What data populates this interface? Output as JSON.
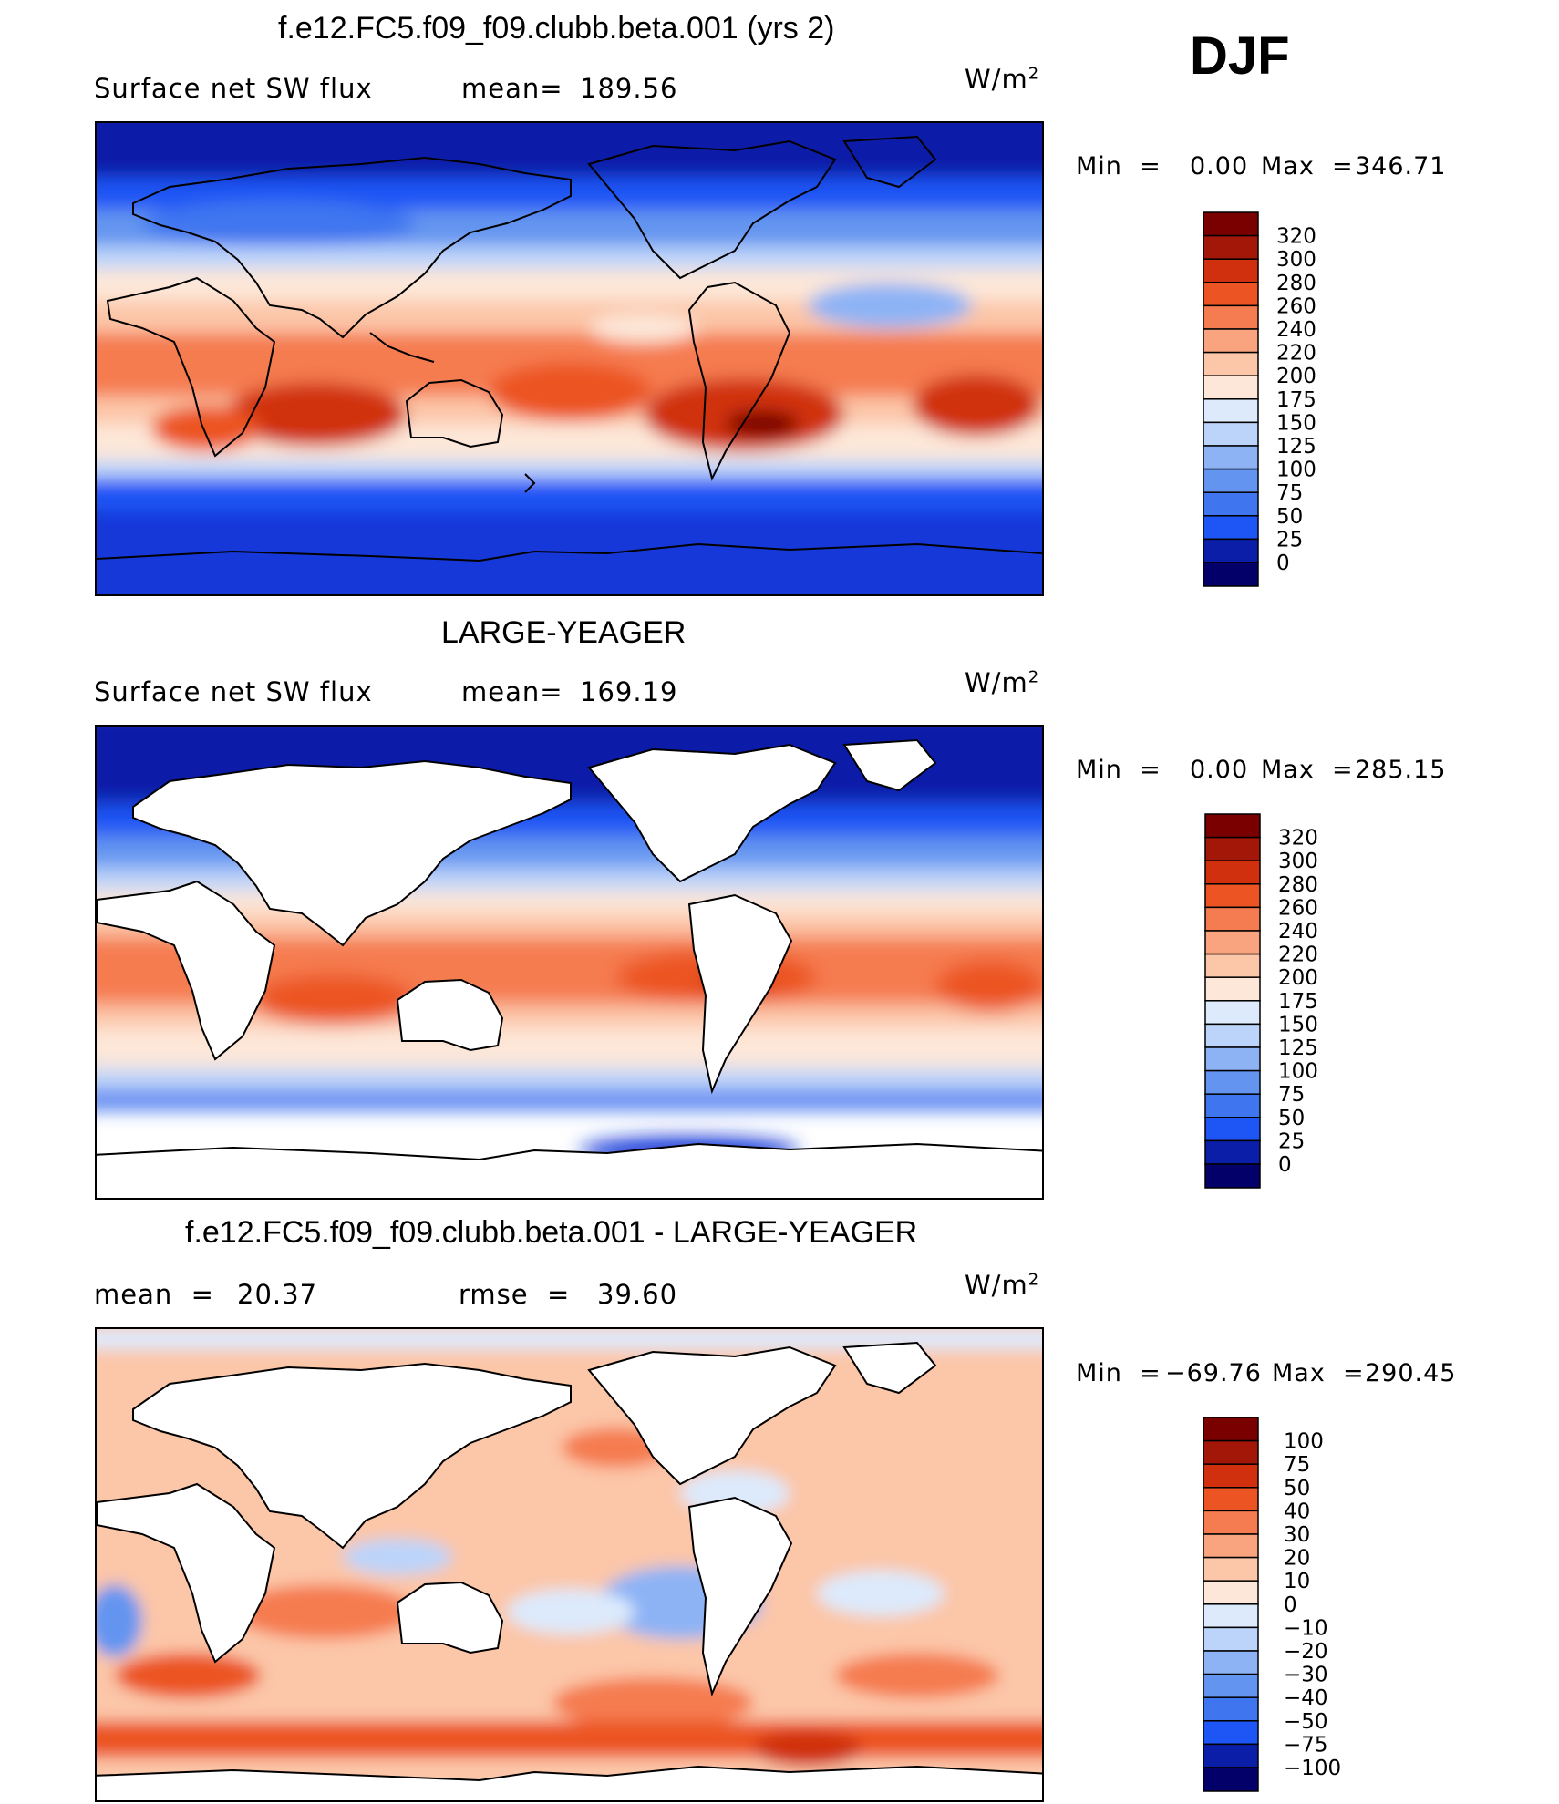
{
  "season": "DJF",
  "units": {
    "base": "W/m",
    "exp": "2"
  },
  "panels": [
    {
      "title": "f.e12.FC5.f09_f09.clubb.beta.001 (yrs 2)",
      "variable": "Surface net SW flux",
      "stat1_label": "mean=",
      "stat1_value": "189.56",
      "min_label": "Min  =",
      "min_value": "0.00",
      "max_label": "Max  =",
      "max_value": "346.71",
      "colorbar_labels": [
        "320",
        "300",
        "280",
        "260",
        "240",
        "220",
        "200",
        "175",
        "150",
        "125",
        "100",
        "75",
        "50",
        "25",
        "0"
      ],
      "map_kind": "model"
    },
    {
      "title": "LARGE-YEAGER",
      "variable": "Surface net SW flux",
      "stat1_label": "mean=",
      "stat1_value": "169.19",
      "min_label": "Min  =",
      "min_value": "0.00",
      "max_label": "Max  =",
      "max_value": "285.15",
      "colorbar_labels": [
        "320",
        "300",
        "280",
        "260",
        "240",
        "220",
        "200",
        "175",
        "150",
        "125",
        "100",
        "75",
        "50",
        "25",
        "0"
      ],
      "map_kind": "obs"
    },
    {
      "title": "f.e12.FC5.f09_f09.clubb.beta.001 - LARGE-YEAGER",
      "stat1_label": "mean  =",
      "stat1_value": "20.37",
      "stat2_label": "rmse  =",
      "stat2_value": "39.60",
      "min_label": "Min  =",
      "min_value": "−69.76",
      "max_label": "Max  =",
      "max_value": "290.45",
      "colorbar_labels": [
        "100",
        "75",
        "50",
        "40",
        "30",
        "20",
        "10",
        "0",
        "−10",
        "−20",
        "−30",
        "−40",
        "−50",
        "−75",
        "−100"
      ],
      "map_kind": "diff"
    }
  ],
  "chart_data": [
    {
      "type": "heatmap",
      "title": "f.e12.FC5.f09_f09.clubb.beta.001 (yrs 2)",
      "subtitle": "Surface net SW flux",
      "units": "W/m2",
      "season": "DJF",
      "mean": 189.56,
      "min": 0.0,
      "max": 346.71,
      "contour_levels": [
        0,
        25,
        50,
        75,
        100,
        125,
        150,
        175,
        200,
        220,
        240,
        260,
        280,
        300,
        320
      ],
      "colors": [
        "#03006a",
        "#0a1ea8",
        "#1237d9",
        "#1e55f5",
        "#3f76f0",
        "#6395f0",
        "#8db3f5",
        "#bcd4fa",
        "#dceafc",
        "#fde7d8",
        "#fcc6a8",
        "#f9a47e",
        "#f57c50",
        "#ec5424",
        "#d0300e",
        "#a31708",
        "#7a0000"
      ],
      "region": "global ocean and land"
    },
    {
      "type": "heatmap",
      "title": "LARGE-YEAGER",
      "subtitle": "Surface net SW flux",
      "units": "W/m2",
      "season": "DJF",
      "mean": 169.19,
      "min": 0.0,
      "max": 285.15,
      "contour_levels": [
        0,
        25,
        50,
        75,
        100,
        125,
        150,
        175,
        200,
        220,
        240,
        260,
        280,
        300,
        320
      ],
      "region": "global ocean only (land masked)"
    },
    {
      "type": "heatmap",
      "title": "f.e12.FC5.f09_f09.clubb.beta.001 - LARGE-YEAGER",
      "units": "W/m2",
      "season": "DJF",
      "mean": 20.37,
      "rmse": 39.6,
      "min": -69.76,
      "max": 290.45,
      "contour_levels": [
        -100,
        -75,
        -50,
        -40,
        -30,
        -20,
        -10,
        0,
        10,
        20,
        30,
        40,
        50,
        75,
        100
      ],
      "region": "global ocean only (land masked)"
    }
  ]
}
